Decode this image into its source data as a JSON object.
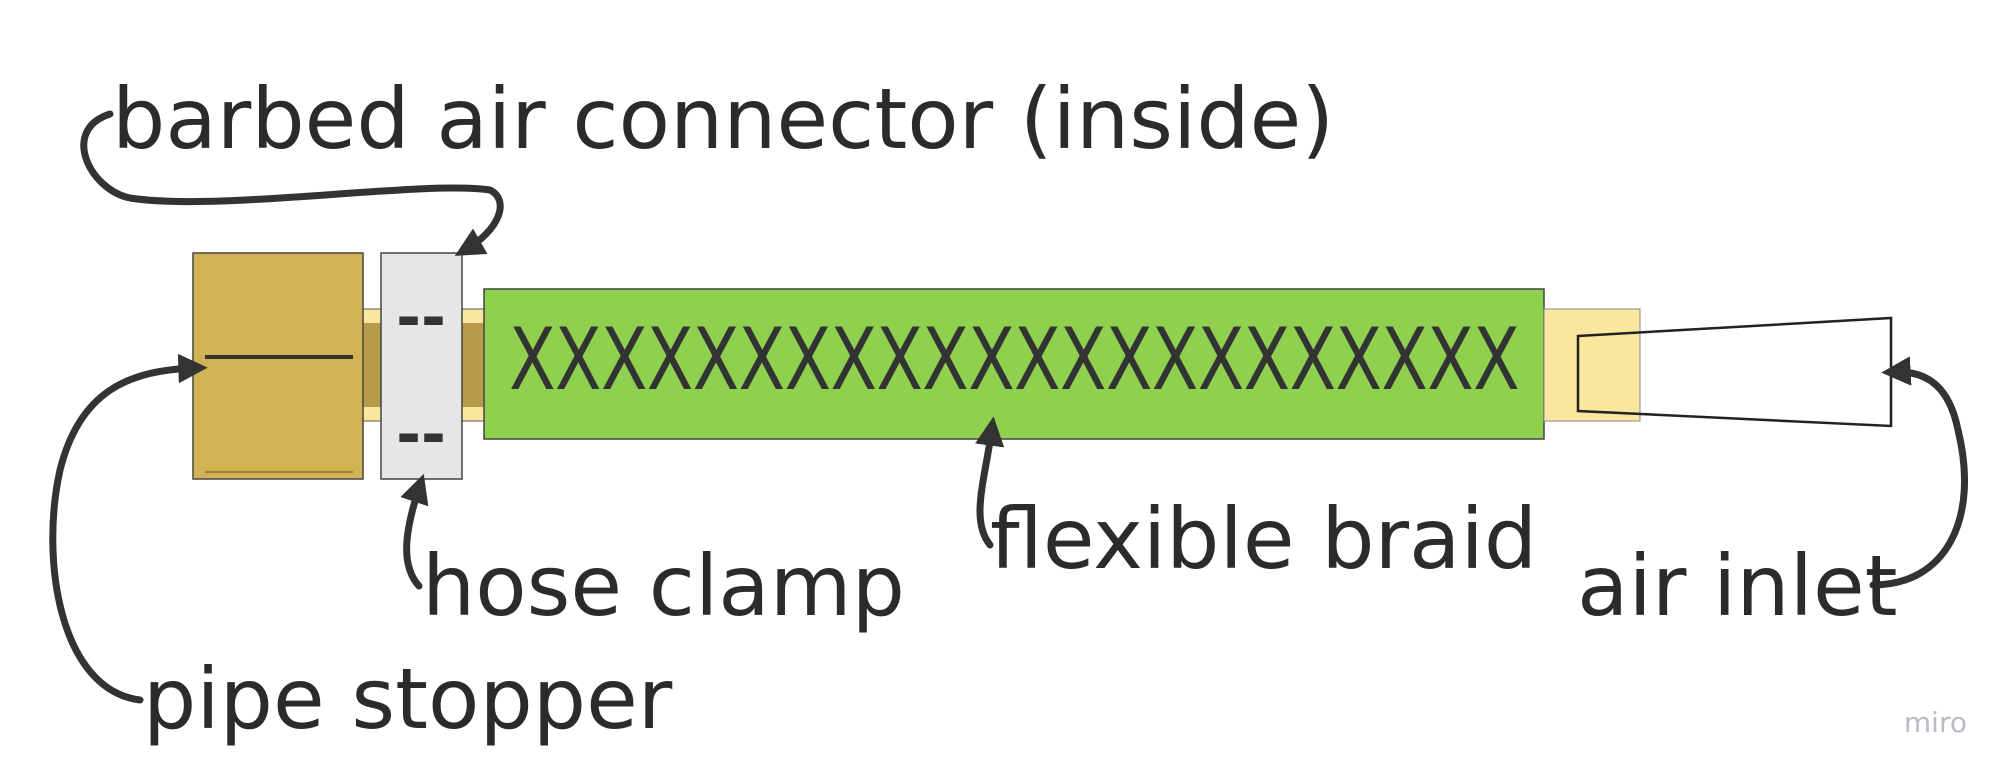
{
  "labels": {
    "barbed_connector": "barbed air connector (inside)",
    "pipe_stopper": "pipe stopper",
    "hose_clamp": "hose clamp",
    "flexible_braid": "flexible braid",
    "air_inlet": "air inlet"
  },
  "braid_pattern": "XXXXXXXXXXXXXXXXXXXXXX",
  "clamp_marks": [
    "--",
    "--"
  ],
  "watermark": "miro",
  "colors": {
    "pipe_stopper": "#D1B354",
    "hose_clamp": "#E6E6E6",
    "flexible_braid": "#8FD14F",
    "inner_tube": "#FBE69E",
    "barbed_connector": "#B89B4A",
    "arrow": "#333333",
    "text": "#2b2b2b"
  }
}
